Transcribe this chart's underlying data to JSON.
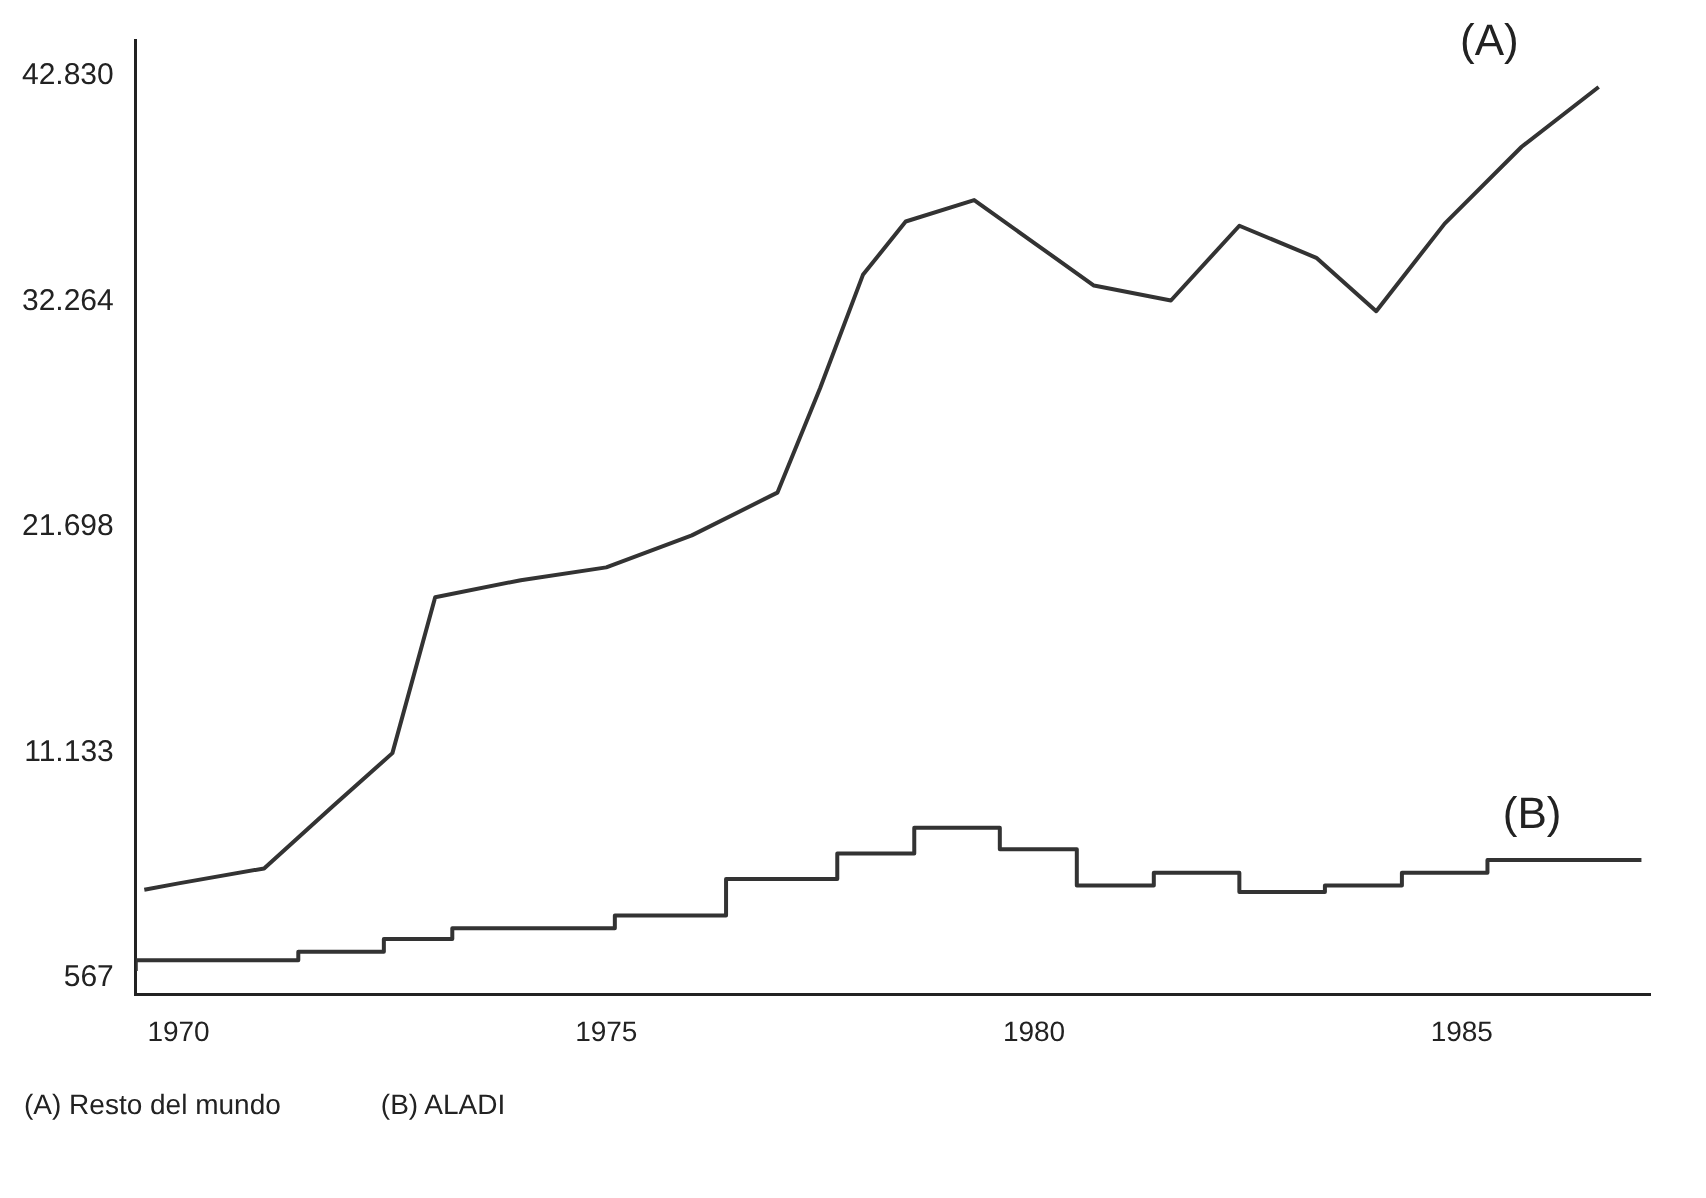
{
  "chart_data": {
    "type": "line",
    "xlim": [
      1969.5,
      1987.2
    ],
    "xticks": [
      1970,
      1975,
      1980,
      1985
    ],
    "ylim": [
      -200,
      44500
    ],
    "yticks": [
      {
        "value": 567,
        "label": "567"
      },
      {
        "value": 11133,
        "label": "11.133"
      },
      {
        "value": 21698,
        "label": "21.698"
      },
      {
        "value": 32264,
        "label": "32.264"
      },
      {
        "value": 42830,
        "label": "42.830"
      }
    ],
    "grid": false,
    "legend": false,
    "marker": "none",
    "series": [
      {
        "name": "(A)",
        "color": "#333333",
        "x": [
          1969.6,
          1970,
          1971,
          1971.8,
          1972.5,
          1973,
          1974,
          1975,
          1976,
          1977,
          1977.5,
          1978,
          1978.5,
          1979.3,
          1980,
          1980.7,
          1981.6,
          1982.4,
          1983.3,
          1984,
          1984.8,
          1985.7,
          1986.6
        ],
        "values": [
          4700,
          5000,
          5700,
          8600,
          11100,
          18400,
          19200,
          19800,
          21300,
          23300,
          28200,
          33500,
          36000,
          37000,
          35000,
          33000,
          32300,
          35800,
          34300,
          31800,
          35900,
          39500,
          42300
        ]
      },
      {
        "type": "step",
        "name": "(B)",
        "color": "#333333",
        "x": [
          1969.5,
          1971.4,
          1972.4,
          1973.2,
          1975.1,
          1976.4,
          1977.7,
          1978.6,
          1979.6,
          1980.5,
          1981.4,
          1982.4,
          1983.4,
          1984.3,
          1985.3,
          1986.3,
          1987.1
        ],
        "values": [
          900,
          1400,
          1800,
          2400,
          2900,
          3500,
          5200,
          6400,
          7600,
          6600,
          4900,
          5500,
          4600,
          4900,
          5500,
          6100,
          6100
        ]
      }
    ],
    "annotations": [
      "(A) Resto del mundo",
      "(B) ALADI"
    ]
  }
}
